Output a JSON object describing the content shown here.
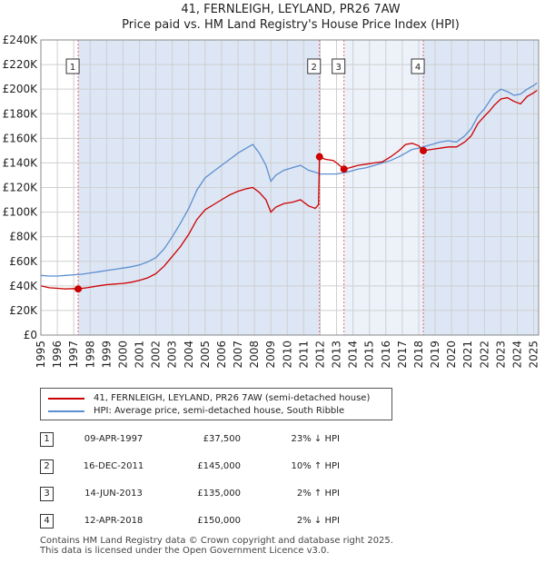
{
  "chart_data": {
    "type": "line",
    "title": "41, FERNLEIGH, LEYLAND, PR26 7AW",
    "subtitle": "Price paid vs. HM Land Registry's House Price Index (HPI)",
    "xlabel": "",
    "ylabel": "",
    "xlim": [
      1995,
      2025.3
    ],
    "ylim": [
      0,
      240000
    ],
    "x_ticks": [
      "1995",
      "1996",
      "1997",
      "1998",
      "1999",
      "2000",
      "2001",
      "2002",
      "2003",
      "2004",
      "2005",
      "2006",
      "2007",
      "2008",
      "2009",
      "2010",
      "2011",
      "2012",
      "2013",
      "2014",
      "2015",
      "2016",
      "2017",
      "2018",
      "2019",
      "2020",
      "2021",
      "2022",
      "2023",
      "2024",
      "2025"
    ],
    "y_ticks": [
      {
        "value": 0,
        "label": "£0"
      },
      {
        "value": 20000,
        "label": "£20K"
      },
      {
        "value": 40000,
        "label": "£40K"
      },
      {
        "value": 60000,
        "label": "£60K"
      },
      {
        "value": 80000,
        "label": "£80K"
      },
      {
        "value": 100000,
        "label": "£100K"
      },
      {
        "value": 120000,
        "label": "£120K"
      },
      {
        "value": 140000,
        "label": "£140K"
      },
      {
        "value": 160000,
        "label": "£160K"
      },
      {
        "value": 180000,
        "label": "£180K"
      },
      {
        "value": 200000,
        "label": "£200K"
      },
      {
        "value": 220000,
        "label": "£220K"
      },
      {
        "value": 240000,
        "label": "£240K"
      }
    ],
    "grid": true,
    "series": [
      {
        "name": "41, FERNLEIGH, LEYLAND, PR26 7AW (semi-detached house)",
        "color": "#cc0000",
        "points": [
          [
            1995.0,
            40000
          ],
          [
            1995.5,
            38500
          ],
          [
            1996.0,
            38000
          ],
          [
            1996.5,
            37500
          ],
          [
            1997.0,
            37800
          ],
          [
            1997.27,
            37500
          ],
          [
            1997.8,
            38500
          ],
          [
            1998.5,
            40000
          ],
          [
            1999.0,
            41000
          ],
          [
            1999.5,
            41500
          ],
          [
            2000.0,
            42000
          ],
          [
            2000.5,
            43000
          ],
          [
            2001.0,
            44500
          ],
          [
            2001.5,
            46500
          ],
          [
            2002.0,
            50000
          ],
          [
            2002.5,
            56000
          ],
          [
            2003.0,
            64000
          ],
          [
            2003.5,
            72000
          ],
          [
            2004.0,
            82000
          ],
          [
            2004.5,
            94000
          ],
          [
            2005.0,
            102000
          ],
          [
            2005.5,
            106000
          ],
          [
            2006.0,
            110000
          ],
          [
            2006.5,
            114000
          ],
          [
            2007.0,
            117000
          ],
          [
            2007.5,
            119000
          ],
          [
            2007.9,
            120000
          ],
          [
            2008.3,
            116000
          ],
          [
            2008.7,
            110000
          ],
          [
            2009.0,
            100000
          ],
          [
            2009.3,
            104000
          ],
          [
            2009.8,
            107000
          ],
          [
            2010.3,
            108000
          ],
          [
            2010.8,
            110000
          ],
          [
            2011.3,
            105000
          ],
          [
            2011.7,
            103000
          ],
          [
            2011.9,
            106000
          ],
          [
            2011.96,
            145000
          ],
          [
            2012.3,
            143000
          ],
          [
            2012.8,
            142000
          ],
          [
            2013.0,
            140000
          ],
          [
            2013.45,
            135000
          ],
          [
            2013.8,
            136000
          ],
          [
            2014.3,
            138000
          ],
          [
            2014.8,
            139000
          ],
          [
            2015.3,
            140000
          ],
          [
            2015.8,
            141000
          ],
          [
            2016.3,
            145000
          ],
          [
            2016.8,
            150000
          ],
          [
            2017.2,
            155000
          ],
          [
            2017.6,
            156000
          ],
          [
            2018.0,
            154000
          ],
          [
            2018.28,
            150000
          ],
          [
            2018.8,
            151000
          ],
          [
            2019.3,
            152000
          ],
          [
            2019.8,
            153000
          ],
          [
            2020.3,
            153000
          ],
          [
            2020.8,
            157000
          ],
          [
            2021.2,
            162000
          ],
          [
            2021.6,
            172000
          ],
          [
            2022.0,
            178000
          ],
          [
            2022.3,
            182000
          ],
          [
            2022.6,
            187000
          ],
          [
            2023.0,
            192000
          ],
          [
            2023.4,
            193000
          ],
          [
            2023.8,
            190000
          ],
          [
            2024.2,
            188000
          ],
          [
            2024.6,
            194000
          ],
          [
            2025.0,
            197000
          ],
          [
            2025.2,
            199000
          ]
        ]
      },
      {
        "name": "HPI: Average price, semi-detached house, South Ribble",
        "color": "#5b8fcf",
        "points": [
          [
            1995.0,
            48500
          ],
          [
            1995.5,
            48000
          ],
          [
            1996.0,
            48000
          ],
          [
            1996.5,
            48500
          ],
          [
            1997.0,
            49000
          ],
          [
            1997.5,
            49500
          ],
          [
            1998.0,
            50500
          ],
          [
            1998.5,
            51500
          ],
          [
            1999.0,
            52500
          ],
          [
            1999.5,
            53500
          ],
          [
            2000.0,
            54500
          ],
          [
            2000.5,
            55500
          ],
          [
            2001.0,
            57000
          ],
          [
            2001.5,
            59500
          ],
          [
            2002.0,
            63000
          ],
          [
            2002.5,
            70000
          ],
          [
            2003.0,
            80000
          ],
          [
            2003.5,
            91000
          ],
          [
            2004.0,
            103000
          ],
          [
            2004.5,
            118000
          ],
          [
            2005.0,
            128000
          ],
          [
            2005.5,
            133000
          ],
          [
            2006.0,
            138000
          ],
          [
            2006.5,
            143000
          ],
          [
            2007.0,
            148000
          ],
          [
            2007.5,
            152000
          ],
          [
            2007.9,
            155000
          ],
          [
            2008.3,
            148000
          ],
          [
            2008.7,
            138000
          ],
          [
            2009.0,
            125000
          ],
          [
            2009.3,
            130000
          ],
          [
            2009.8,
            134000
          ],
          [
            2010.3,
            136000
          ],
          [
            2010.8,
            138000
          ],
          [
            2011.3,
            134000
          ],
          [
            2011.8,
            132000
          ],
          [
            2012.0,
            131000
          ],
          [
            2012.5,
            131000
          ],
          [
            2013.0,
            131000
          ],
          [
            2013.45,
            132000
          ],
          [
            2013.8,
            133000
          ],
          [
            2014.3,
            135000
          ],
          [
            2014.8,
            136000
          ],
          [
            2015.3,
            138000
          ],
          [
            2015.8,
            140000
          ],
          [
            2016.3,
            142000
          ],
          [
            2016.8,
            145000
          ],
          [
            2017.2,
            148000
          ],
          [
            2017.6,
            151000
          ],
          [
            2018.0,
            152000
          ],
          [
            2018.28,
            153000
          ],
          [
            2018.8,
            155000
          ],
          [
            2019.3,
            157000
          ],
          [
            2019.8,
            158000
          ],
          [
            2020.3,
            157000
          ],
          [
            2020.8,
            162000
          ],
          [
            2021.2,
            168000
          ],
          [
            2021.6,
            178000
          ],
          [
            2022.0,
            184000
          ],
          [
            2022.3,
            190000
          ],
          [
            2022.6,
            196000
          ],
          [
            2023.0,
            200000
          ],
          [
            2023.4,
            198000
          ],
          [
            2023.8,
            195000
          ],
          [
            2024.2,
            196000
          ],
          [
            2024.6,
            200000
          ],
          [
            2025.0,
            203000
          ],
          [
            2025.2,
            205000
          ]
        ]
      }
    ],
    "transactions": [
      {
        "num": "1",
        "date": "09-APR-1997",
        "x": 1997.27,
        "price_value": 37500,
        "price": "£37,500",
        "hpi": "23% ↓ HPI"
      },
      {
        "num": "2",
        "date": "16-DEC-2011",
        "x": 2011.96,
        "price_value": 145000,
        "price": "£145,000",
        "hpi": "10% ↑ HPI"
      },
      {
        "num": "3",
        "date": "14-JUN-2013",
        "x": 2013.45,
        "price_value": 135000,
        "price": "£135,000",
        "hpi": "2% ↑ HPI"
      },
      {
        "num": "4",
        "date": "12-APR-2018",
        "x": 2018.28,
        "price_value": 150000,
        "price": "£150,000",
        "hpi": "2% ↓ HPI"
      }
    ]
  },
  "legend": {
    "property_label": "41, FERNLEIGH, LEYLAND, PR26 7AW (semi-detached house)",
    "hpi_label": "HPI: Average price, semi-detached house, South Ribble"
  },
  "footer": {
    "line1": "Contains HM Land Registry data © Crown copyright and database right 2025.",
    "line2": "This data is licensed under the Open Government Licence v3.0."
  },
  "colors": {
    "property": "#cc0000",
    "hpi": "#5b8fcf",
    "shade": "#dde6f5",
    "vline": "#e06666"
  }
}
